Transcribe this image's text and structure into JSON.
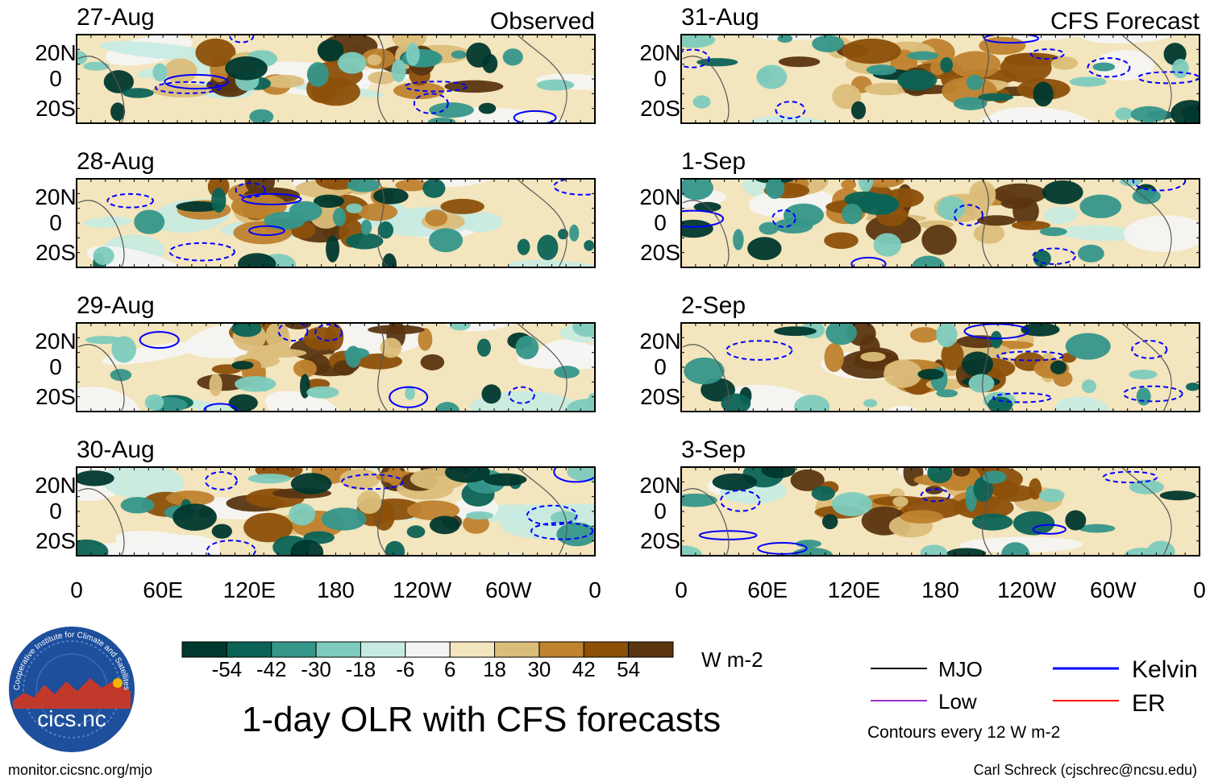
{
  "figure": {
    "title": "1-day OLR with CFS forecasts",
    "units": "W m-2",
    "contour_note": "Contours every 12 W m-2",
    "source_url": "monitor.cicsnc.org/mjo",
    "author": "Carl Schreck (cjschrec@ncsu.edu)",
    "logo_text": "cics.nc",
    "logo_ring_text": "Cooperative Institute for Climate and Satellites",
    "column_headers": {
      "left": "Observed",
      "right": "CFS Forecast"
    }
  },
  "chart_data": {
    "type": "heatmap",
    "variable": "OLR anomaly",
    "lat_ticks": [
      "20N",
      "0",
      "20S"
    ],
    "lon_ticks": [
      "0",
      "60E",
      "120E",
      "180",
      "120W",
      "60W",
      "0"
    ],
    "panels": [
      {
        "date": "27-Aug",
        "kind": "observed",
        "seed": 11
      },
      {
        "date": "28-Aug",
        "kind": "observed",
        "seed": 23
      },
      {
        "date": "29-Aug",
        "kind": "observed",
        "seed": 37
      },
      {
        "date": "30-Aug",
        "kind": "observed",
        "seed": 41
      },
      {
        "date": "31-Aug",
        "kind": "forecast",
        "seed": 53
      },
      {
        "date": "1-Sep",
        "kind": "forecast",
        "seed": 67
      },
      {
        "date": "2-Sep",
        "kind": "forecast",
        "seed": 71
      },
      {
        "date": "3-Sep",
        "kind": "forecast",
        "seed": 89
      }
    ],
    "colorbar": {
      "labels": [
        "-54",
        "-42",
        "-30",
        "-18",
        "-6",
        "6",
        "18",
        "30",
        "42",
        "54"
      ],
      "colors": [
        "#00382e",
        "#0b6356",
        "#35968a",
        "#7dcbbd",
        "#c7ebe2",
        "#f5f5f5",
        "#f3e5bd",
        "#dbbd7a",
        "#bf822e",
        "#8c5009",
        "#5a3510"
      ]
    },
    "legend": [
      {
        "label": "MJO",
        "color": "#000000"
      },
      {
        "label": "Kelvin",
        "color": "#0000ff"
      },
      {
        "label": "Low",
        "color": "#9932cc"
      },
      {
        "label": "ER",
        "color": "#ff0000"
      }
    ]
  }
}
